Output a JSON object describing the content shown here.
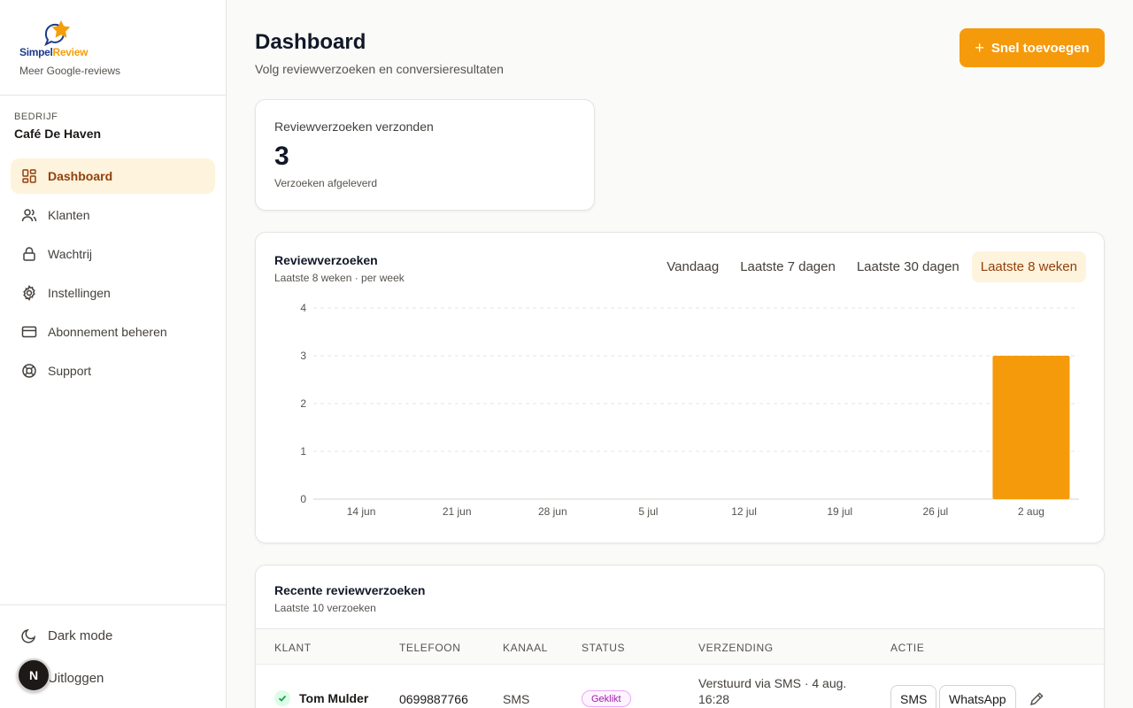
{
  "brand": {
    "name_part1": "Simpel",
    "name_part2": "Review",
    "tagline": "Meer Google-reviews"
  },
  "company": {
    "label": "BEDRIJF",
    "name": "Café De Haven"
  },
  "nav": {
    "items": [
      {
        "label": "Dashboard",
        "icon": "dashboard-icon",
        "active": true
      },
      {
        "label": "Klanten",
        "icon": "users-icon"
      },
      {
        "label": "Wachtrij",
        "icon": "lock-icon"
      },
      {
        "label": "Instellingen",
        "icon": "gear-icon"
      },
      {
        "label": "Abonnement beheren",
        "icon": "credit-card-icon"
      },
      {
        "label": "Support",
        "icon": "lifebuoy-icon"
      }
    ],
    "dark_mode": "Dark mode",
    "logout": "Uitloggen"
  },
  "avatar": {
    "initial": "N"
  },
  "header": {
    "title": "Dashboard",
    "subtitle": "Volg reviewverzoeken en conversieresultaten",
    "quick_add": "Snel toevoegen"
  },
  "stat": {
    "label": "Reviewverzoeken verzonden",
    "value": "3",
    "sub": "Verzoeken afgeleverd"
  },
  "chart": {
    "title": "Reviewverzoeken",
    "subtitle": "Laatste 8 weken · per week",
    "ranges": [
      "Vandaag",
      "Laatste 7 dagen",
      "Laatste 30 dagen",
      "Laatste 8 weken"
    ],
    "active_range": 3
  },
  "chart_data": {
    "type": "bar",
    "title": "Reviewverzoeken",
    "categories": [
      "14 jun",
      "21 jun",
      "28 jun",
      "5 jul",
      "12 jul",
      "19 jul",
      "26 jul",
      "2 aug"
    ],
    "values": [
      0,
      0,
      0,
      0,
      0,
      0,
      0,
      3
    ],
    "ylim": [
      0,
      4
    ],
    "yticks": [
      0,
      1,
      2,
      3,
      4
    ],
    "grid": true,
    "bar_color": "#f59a0b"
  },
  "recent": {
    "title": "Recente reviewverzoeken",
    "subtitle": "Laatste 10 verzoeken",
    "columns": [
      "KLANT",
      "TELEFOON",
      "KANAAL",
      "STATUS",
      "VERZENDING",
      "ACTIE"
    ],
    "rows": [
      {
        "klant": "Tom Mulder",
        "telefoon": "0699887766",
        "kanaal": "SMS",
        "status": "Geklikt",
        "verzending_line1": "Verstuurd via SMS · 4 aug.",
        "verzending_line2": "16:28",
        "action_sms": "SMS",
        "action_whatsapp": "WhatsApp"
      }
    ]
  },
  "colors": {
    "accent": "#f59a0b",
    "active_bg": "#fef3dc",
    "active_text": "#92400e"
  }
}
